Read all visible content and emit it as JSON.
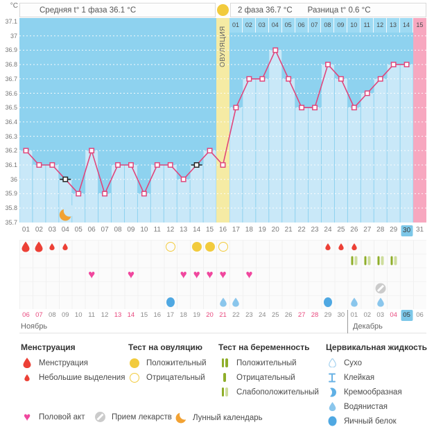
{
  "header": {
    "phase1_label": "Средняя t° 1 фаза 36.1 °C",
    "phase2_label": "2 фаза 36.7 °C",
    "diff_label": "Разница t° 0.6 °C"
  },
  "colors": {
    "chart_bg": "#8ed2ef",
    "under_fill": "#c9e8f8",
    "ovulation_band": "#f5eba4",
    "next_cycle_band": "#f7a7bf",
    "line": "#e0457b",
    "excluded_marker": "#222222",
    "gold": "#f2cb3d",
    "menstruation": "#ec4036",
    "heart": "#f0479e",
    "test_dark_green": "#8fae2a",
    "test_light_green": "#cedd9c",
    "cervical_light_blue": "#8ac6ec",
    "cervical_deep_blue": "#4fa8e2",
    "medication_grey": "#cbcbcb",
    "moon_orange": "#f2a233",
    "today_bg": "#7cc7e8",
    "weekend_text": "#e8487e"
  },
  "chart_data": {
    "type": "line",
    "title": "График базальной температуры",
    "ylabel": "°C",
    "ylim": [
      35.7,
      37.1
    ],
    "grid": "dotted horizontal every 0.1",
    "legend_position": "bottom",
    "yticks": [
      "37.1",
      "37",
      "36.9",
      "36.8",
      "36.7",
      "36.6",
      "36.5",
      "36.4",
      "36.3",
      "36.2",
      "36.1",
      "36",
      "35.9",
      "35.8",
      "35.7"
    ],
    "x_days": [
      "01",
      "02",
      "03",
      "04",
      "05",
      "06",
      "07",
      "08",
      "09",
      "10",
      "11",
      "12",
      "13",
      "14",
      "15",
      "16",
      "17",
      "18",
      "19",
      "20",
      "21",
      "22",
      "23",
      "24",
      "25",
      "26",
      "27",
      "28",
      "29",
      "30",
      "31"
    ],
    "temps": [
      36.2,
      36.1,
      36.1,
      36.0,
      35.9,
      36.2,
      35.9,
      36.1,
      36.1,
      35.9,
      36.1,
      36.1,
      36.0,
      36.1,
      36.2,
      36.1,
      36.5,
      36.7,
      36.7,
      36.9,
      36.7,
      36.5,
      36.5,
      36.8,
      36.7,
      36.5,
      36.6,
      36.7,
      36.8,
      36.8,
      null
    ],
    "excluded_days": [
      4,
      14
    ],
    "ovulation_day": 16,
    "ovulation_band_label": "ОВУЛЯЦИЯ",
    "phase2_day_numbers": [
      "01",
      "02",
      "03",
      "04",
      "05",
      "06",
      "07",
      "08",
      "09",
      "10",
      "11",
      "12",
      "13",
      "14",
      "15"
    ],
    "next_cycle_day": 31,
    "today_day": 30,
    "moon_day": 4
  },
  "events": {
    "menstruation": {
      "heavy": [
        1,
        2
      ],
      "light": [
        3,
        4,
        24,
        25,
        26
      ]
    },
    "ovulation_tests": {
      "positive": [
        14,
        15
      ],
      "negative": [
        12,
        16
      ]
    },
    "pregnancy_tests": {
      "weak_positive": [
        26,
        27,
        28,
        29
      ]
    },
    "intercourse": [
      6,
      9,
      13,
      14,
      15,
      16,
      18
    ],
    "medication": [
      28
    ],
    "cervical": {
      "egg_white": [
        12,
        24
      ],
      "watery": [
        16,
        17,
        26,
        28
      ]
    }
  },
  "calendar": {
    "dates": [
      "06",
      "07",
      "08",
      "09",
      "10",
      "11",
      "12",
      "13",
      "14",
      "15",
      "16",
      "17",
      "18",
      "19",
      "20",
      "21",
      "22",
      "23",
      "24",
      "25",
      "26",
      "27",
      "28",
      "29",
      "30",
      "01",
      "02",
      "03",
      "04",
      "05",
      "06"
    ],
    "weekend_indices": [
      0,
      1,
      7,
      8,
      14,
      15,
      21,
      22,
      28
    ],
    "today_index": 29,
    "divider_after_index": 24,
    "months": [
      {
        "name": "Ноябрь"
      },
      {
        "name": "Декабрь"
      }
    ]
  },
  "legend": {
    "sections": [
      {
        "title": "Менструация",
        "items": [
          {
            "icon": "drop-large",
            "label": "Менструация"
          },
          {
            "icon": "drop-small",
            "label": "Небольшие выделения"
          }
        ]
      },
      {
        "title": "Тест на овуляцию",
        "items": [
          {
            "icon": "circle-filled",
            "label": "Положительный"
          },
          {
            "icon": "circle-outline",
            "label": "Отрицательный"
          }
        ]
      },
      {
        "title": "Тест на беременность",
        "items": [
          {
            "icon": "bars-positive",
            "label": "Положительный"
          },
          {
            "icon": "bar-negative",
            "label": "Отрицательный"
          },
          {
            "icon": "bars-weak",
            "label": "Слабоположительный"
          }
        ]
      },
      {
        "title": "Цервикальная жидкость",
        "items": [
          {
            "icon": "drop-outline",
            "label": "Сухо"
          },
          {
            "icon": "sticky",
            "label": "Клейкая"
          },
          {
            "icon": "creamy",
            "label": "Кремообразная"
          },
          {
            "icon": "watery",
            "label": "Водянистая"
          },
          {
            "icon": "egg-white",
            "label": "Яичный белок"
          }
        ]
      }
    ],
    "misc": [
      {
        "icon": "heart",
        "label": "Половой акт"
      },
      {
        "icon": "medication",
        "label": "Прием лекарств"
      },
      {
        "icon": "moon",
        "label": "Лунный календарь"
      }
    ]
  }
}
